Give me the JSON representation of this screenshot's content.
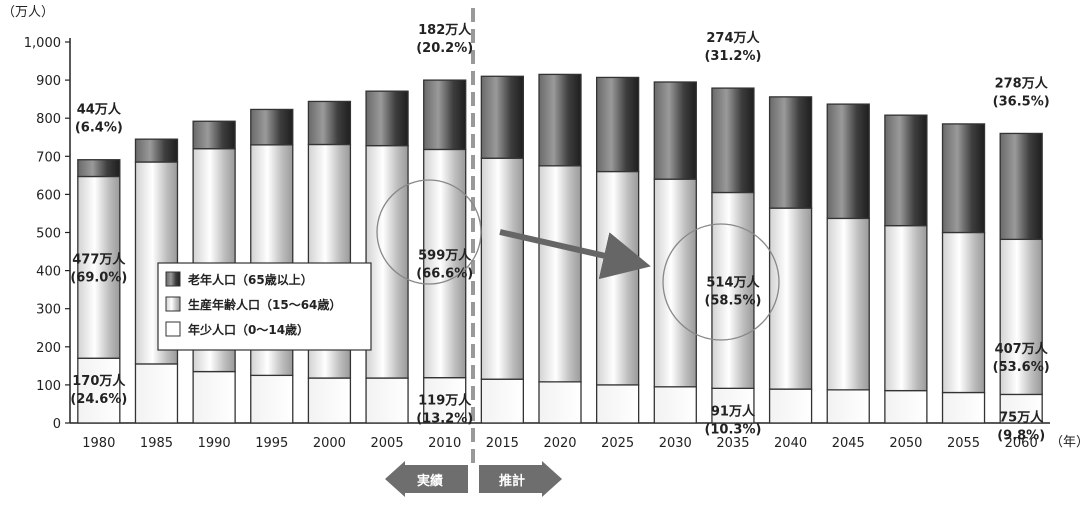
{
  "chart_data": {
    "type": "bar",
    "stacked": true,
    "y_unit_label": "（万人）",
    "x_unit_label": "（年）",
    "ylim": [
      0,
      1000
    ],
    "yticks": [
      "0",
      "100",
      "200",
      "300",
      "400",
      "500",
      "600",
      "700",
      "800",
      "900",
      "1,000"
    ],
    "categories": [
      "1980",
      "1985",
      "1990",
      "1995",
      "2000",
      "2005",
      "2010",
      "2015",
      "2020",
      "2025",
      "2030",
      "2035",
      "2040",
      "2045",
      "2050",
      "2055",
      "2060"
    ],
    "series": [
      {
        "name": "年少人口（0～14歳）",
        "values": [
          170,
          155,
          135,
          125,
          118,
          118,
          119,
          115,
          108,
          100,
          95,
          91,
          89,
          87,
          85,
          80,
          75
        ]
      },
      {
        "name": "生産年齢人口（15～64歳）",
        "values": [
          477,
          530,
          585,
          605,
          613,
          610,
          599,
          580,
          567,
          560,
          545,
          514,
          475,
          450,
          433,
          420,
          407
        ]
      },
      {
        "name": "老年人口（65歳以上）",
        "values": [
          44,
          60,
          72,
          93,
          113,
          143,
          182,
          215,
          240,
          247,
          255,
          274,
          292,
          300,
          290,
          285,
          278
        ]
      }
    ],
    "legend": {
      "placement": "left-middle",
      "items": [
        "老年人口（65歳以上）",
        "生産年齢人口（15～64歳）",
        "年少人口（0～14歳）"
      ]
    },
    "divider_between": [
      "2010",
      "2015"
    ],
    "period_labels": {
      "actual": "実績",
      "projection": "推計"
    },
    "annotations": [
      {
        "category": "1980",
        "series": "老年人口（65歳以上）",
        "lines": [
          "44万人",
          "(6.4%)"
        ]
      },
      {
        "category": "1980",
        "series": "生産年齢人口（15～64歳）",
        "lines": [
          "477万人",
          "(69.0%)"
        ]
      },
      {
        "category": "1980",
        "series": "年少人口（0～14歳）",
        "lines": [
          "170万人",
          "(24.6%)"
        ]
      },
      {
        "category": "2010",
        "series": "老年人口（65歳以上）",
        "lines": [
          "182万人",
          "(20.2%)"
        ]
      },
      {
        "category": "2010",
        "series": "生産年齢人口（15～64歳）",
        "lines": [
          "599万人",
          "(66.6%)"
        ]
      },
      {
        "category": "2010",
        "series": "年少人口（0～14歳）",
        "lines": [
          "119万人",
          "(13.2%)"
        ]
      },
      {
        "category": "2035",
        "series": "老年人口（65歳以上）",
        "lines": [
          "274万人",
          "(31.2%)"
        ]
      },
      {
        "category": "2035",
        "series": "生産年齢人口（15～64歳）",
        "lines": [
          "514万人",
          "(58.5%)"
        ]
      },
      {
        "category": "2035",
        "series": "年少人口（0～14歳）",
        "lines": [
          "91万人",
          "(10.3%)"
        ]
      },
      {
        "category": "2060",
        "series": "老年人口（65歳以上）",
        "lines": [
          "278万人",
          "(36.5%)"
        ]
      },
      {
        "category": "2060",
        "series": "生産年齢人口（15～64歳）",
        "lines": [
          "407万人",
          "(53.6%)"
        ]
      },
      {
        "category": "2060",
        "series": "年少人口（0～14歳）",
        "lines": [
          "75万人",
          "(9.8%)"
        ]
      }
    ],
    "grid": false
  }
}
